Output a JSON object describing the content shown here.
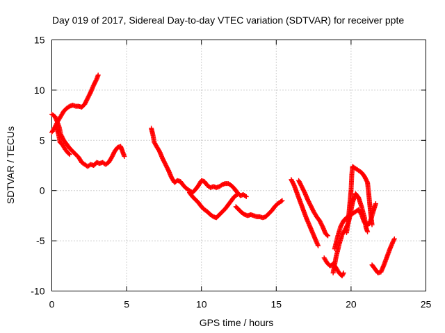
{
  "chart_data": {
    "type": "scatter",
    "title": "Day 019 of 2017, Sidereal Day-to-day VTEC variation (SDTVAR) for receiver ppte",
    "xlabel": "GPS time / hours",
    "ylabel": "SDTVAR / TECUs",
    "xlim": [
      0,
      25
    ],
    "ylim": [
      -10,
      15
    ],
    "x_ticks": [
      0,
      5,
      10,
      15,
      20,
      25
    ],
    "y_ticks": [
      -10,
      -5,
      0,
      5,
      10,
      15
    ],
    "x_tick_labels": [
      "0",
      "5",
      "10",
      "15",
      "20",
      "25"
    ],
    "y_tick_labels": [
      "-10",
      "-5",
      "0",
      "5",
      "10",
      "15"
    ],
    "grid": true,
    "marker": "plus",
    "point_color": "#ff0000",
    "series": [
      {
        "segments": [
          [
            [
              0,
              7.6
            ],
            [
              0.2,
              7.4
            ],
            [
              0.35,
              6.9
            ],
            [
              0.5,
              6.3
            ],
            [
              0.6,
              5.6
            ],
            [
              0.8,
              5.0
            ],
            [
              1.0,
              4.6
            ],
            [
              1.2,
              4.2
            ],
            [
              1.4,
              3.9
            ],
            [
              1.6,
              3.6
            ],
            [
              1.8,
              3.3
            ],
            [
              2.0,
              2.8
            ],
            [
              2.2,
              2.6
            ],
            [
              2.4,
              2.4
            ],
            [
              2.6,
              2.6
            ],
            [
              2.8,
              2.5
            ],
            [
              3.0,
              2.8
            ],
            [
              3.2,
              2.7
            ],
            [
              3.4,
              2.8
            ],
            [
              3.6,
              2.6
            ],
            [
              3.8,
              2.8
            ],
            [
              4.0,
              3.3
            ],
            [
              4.2,
              3.9
            ],
            [
              4.4,
              4.3
            ],
            [
              4.6,
              4.4
            ],
            [
              4.7,
              4.0
            ],
            [
              4.85,
              3.4
            ]
          ],
          [
            [
              0,
              5.8
            ],
            [
              0.2,
              6.3
            ],
            [
              0.4,
              6.9
            ],
            [
              0.6,
              7.4
            ],
            [
              0.8,
              7.9
            ],
            [
              1.0,
              8.2
            ],
            [
              1.2,
              8.4
            ],
            [
              1.4,
              8.5
            ],
            [
              1.6,
              8.4
            ],
            [
              1.8,
              8.4
            ],
            [
              2.0,
              8.3
            ],
            [
              2.2,
              8.6
            ],
            [
              2.4,
              9.2
            ],
            [
              2.6,
              9.8
            ],
            [
              2.8,
              10.5
            ],
            [
              3.0,
              11.1
            ],
            [
              3.1,
              11.5
            ]
          ],
          [
            [
              0.3,
              6.4
            ],
            [
              0.45,
              5.6
            ],
            [
              0.55,
              4.8
            ],
            [
              0.7,
              4.6
            ],
            [
              0.9,
              4.1
            ],
            [
              1.05,
              3.8
            ],
            [
              1.2,
              3.6
            ]
          ],
          [
            [
              6.65,
              6.2
            ],
            [
              6.75,
              5.6
            ],
            [
              6.85,
              4.8
            ],
            [
              7.0,
              4.4
            ],
            [
              7.2,
              3.9
            ],
            [
              7.4,
              3.2
            ],
            [
              7.6,
              2.6
            ],
            [
              7.8,
              2.0
            ],
            [
              8.0,
              1.3
            ],
            [
              8.2,
              0.8
            ],
            [
              8.4,
              1.0
            ],
            [
              8.6,
              0.9
            ],
            [
              8.8,
              0.5
            ],
            [
              9.0,
              0.2
            ],
            [
              9.2,
              0.0
            ],
            [
              9.4,
              -0.2
            ],
            [
              9.6,
              0.1
            ],
            [
              9.8,
              0.5
            ],
            [
              10.0,
              1.0
            ],
            [
              10.2,
              0.9
            ],
            [
              10.4,
              0.5
            ],
            [
              10.6,
              0.3
            ],
            [
              10.8,
              0.4
            ],
            [
              11.0,
              0.3
            ],
            [
              11.2,
              0.4
            ],
            [
              11.4,
              0.6
            ],
            [
              11.6,
              0.7
            ],
            [
              11.8,
              0.7
            ],
            [
              12.0,
              0.5
            ],
            [
              12.2,
              0.2
            ],
            [
              12.4,
              -0.2
            ],
            [
              12.6,
              -0.5
            ],
            [
              12.8,
              -0.4
            ],
            [
              13.0,
              -0.6
            ]
          ],
          [
            [
              9.2,
              -0.2
            ],
            [
              9.4,
              -0.6
            ],
            [
              9.6,
              -0.9
            ],
            [
              9.8,
              -1.2
            ],
            [
              10.0,
              -1.6
            ],
            [
              10.2,
              -1.9
            ],
            [
              10.4,
              -2.1
            ],
            [
              10.6,
              -2.4
            ],
            [
              10.8,
              -2.6
            ],
            [
              11.0,
              -2.7
            ],
            [
              11.2,
              -2.4
            ],
            [
              11.4,
              -2.1
            ],
            [
              11.6,
              -1.8
            ],
            [
              11.8,
              -1.4
            ],
            [
              12.0,
              -1.0
            ],
            [
              12.2,
              -0.6
            ],
            [
              12.4,
              -0.4
            ]
          ],
          [
            [
              12.3,
              -1.6
            ],
            [
              12.5,
              -1.9
            ],
            [
              12.7,
              -2.2
            ],
            [
              12.9,
              -2.4
            ],
            [
              13.1,
              -2.5
            ],
            [
              13.3,
              -2.4
            ],
            [
              13.5,
              -2.5
            ],
            [
              13.7,
              -2.6
            ],
            [
              13.9,
              -2.6
            ],
            [
              14.1,
              -2.7
            ],
            [
              14.3,
              -2.6
            ],
            [
              14.5,
              -2.3
            ],
            [
              14.7,
              -2.0
            ],
            [
              14.9,
              -1.6
            ],
            [
              15.1,
              -1.3
            ],
            [
              15.3,
              -1.1
            ],
            [
              15.4,
              -1.0
            ]
          ],
          [
            [
              16.0,
              1.1
            ],
            [
              16.2,
              0.5
            ],
            [
              16.4,
              -0.3
            ],
            [
              16.6,
              -1.1
            ],
            [
              16.8,
              -1.9
            ],
            [
              17.0,
              -2.7
            ],
            [
              17.2,
              -3.4
            ],
            [
              17.4,
              -4.1
            ],
            [
              17.6,
              -4.8
            ],
            [
              17.8,
              -5.5
            ]
          ],
          [
            [
              16.5,
              1.0
            ],
            [
              16.7,
              0.4
            ],
            [
              16.9,
              -0.2
            ],
            [
              17.1,
              -0.9
            ],
            [
              17.3,
              -1.5
            ],
            [
              17.5,
              -2.1
            ],
            [
              17.7,
              -2.6
            ],
            [
              17.9,
              -3.0
            ],
            [
              18.1,
              -3.6
            ],
            [
              18.3,
              -4.3
            ],
            [
              18.45,
              -4.5
            ]
          ],
          [
            [
              18.2,
              -6.7
            ],
            [
              18.4,
              -7.2
            ],
            [
              18.6,
              -7.5
            ],
            [
              18.8,
              -7.3
            ],
            [
              19.0,
              -7.7
            ],
            [
              19.2,
              -8.2
            ],
            [
              19.4,
              -8.5
            ],
            [
              19.5,
              -8.2
            ]
          ],
          [
            [
              18.9,
              -5.8
            ],
            [
              19.1,
              -4.6
            ],
            [
              19.3,
              -3.6
            ],
            [
              19.5,
              -3.0
            ],
            [
              19.7,
              -2.7
            ],
            [
              19.9,
              -2.5
            ],
            [
              20.1,
              -2.3
            ],
            [
              20.3,
              -2.1
            ],
            [
              20.5,
              -1.9
            ],
            [
              20.7,
              -2.4
            ],
            [
              20.9,
              -3.2
            ],
            [
              21.1,
              -3.5
            ],
            [
              21.3,
              -3.0
            ],
            [
              21.5,
              -2.0
            ],
            [
              21.65,
              -1.3
            ]
          ],
          [
            [
              19.7,
              -4.2
            ],
            [
              19.8,
              -3.2
            ],
            [
              19.9,
              -1.6
            ],
            [
              20.0,
              0.0
            ],
            [
              20.05,
              1.6
            ],
            [
              20.1,
              2.4
            ],
            [
              20.3,
              2.2
            ],
            [
              20.5,
              2.0
            ],
            [
              20.7,
              1.8
            ],
            [
              20.9,
              1.4
            ],
            [
              21.1,
              0.8
            ],
            [
              21.2,
              -0.6
            ],
            [
              21.3,
              -2.1
            ],
            [
              21.4,
              -3.4
            ]
          ],
          [
            [
              18.8,
              -8.2
            ],
            [
              19.0,
              -6.6
            ],
            [
              19.2,
              -5.4
            ],
            [
              19.4,
              -4.4
            ],
            [
              19.6,
              -3.9
            ],
            [
              19.8,
              -3.3
            ],
            [
              19.9,
              -2.7
            ],
            [
              20.1,
              -1.2
            ],
            [
              20.3,
              -0.3
            ],
            [
              20.5,
              -0.7
            ],
            [
              20.7,
              -1.6
            ],
            [
              20.9,
              -2.7
            ],
            [
              21.0,
              -3.7
            ],
            [
              21.1,
              -4.1
            ]
          ],
          [
            [
              21.4,
              -7.4
            ],
            [
              21.6,
              -7.8
            ],
            [
              21.8,
              -8.2
            ],
            [
              22.0,
              -8.1
            ],
            [
              22.2,
              -7.4
            ],
            [
              22.4,
              -6.6
            ],
            [
              22.6,
              -5.8
            ],
            [
              22.8,
              -5.1
            ],
            [
              22.9,
              -4.8
            ]
          ]
        ]
      }
    ]
  }
}
